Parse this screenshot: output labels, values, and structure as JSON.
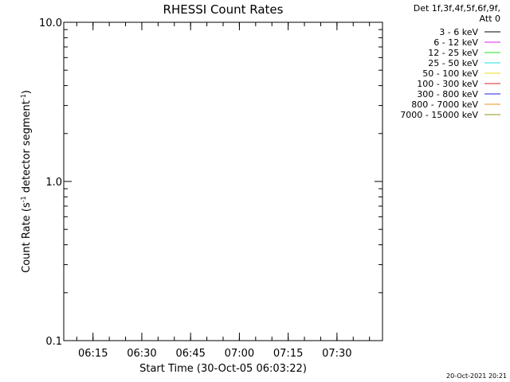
{
  "chart_data": {
    "type": "line",
    "title": "RHESSI Count Rates",
    "xlabel": "Start Time (30-Oct-05 06:03:22)",
    "ylabel_main": "Count Rate (s",
    "ylabel_sup1": "-1",
    "ylabel_mid": " detector segment",
    "ylabel_sup2": "-1",
    "ylabel_end": ")",
    "yscale": "log",
    "ylim": [
      0.1,
      10.0
    ],
    "yticks": [
      {
        "value": 0.1,
        "label": "0.1"
      },
      {
        "value": 1.0,
        "label": "1.0"
      },
      {
        "value": 10.0,
        "label": "10.0"
      }
    ],
    "xlim_minutes": [
      6.0,
      104.0
    ],
    "xticks": [
      {
        "value": 15,
        "label": "06:15"
      },
      {
        "value": 30,
        "label": "06:30"
      },
      {
        "value": 45,
        "label": "06:45"
      },
      {
        "value": 60,
        "label": "07:00"
      },
      {
        "value": 75,
        "label": "07:15"
      },
      {
        "value": 90,
        "label": "07:30"
      }
    ],
    "xminor_step_minutes": 5,
    "legend_header": [
      "Det 1f,3f,4f,5f,6f,9f,",
      "Att 0"
    ],
    "series": [
      {
        "name": "3 - 6 keV",
        "color": "#000000",
        "values": []
      },
      {
        "name": "6 - 12 keV",
        "color": "#e020e0",
        "values": []
      },
      {
        "name": "12 - 25 keV",
        "color": "#20e020",
        "values": []
      },
      {
        "name": "25 - 50 keV",
        "color": "#20e0e0",
        "values": []
      },
      {
        "name": "50 - 100 keV",
        "color": "#e8e020",
        "values": []
      },
      {
        "name": "100 - 300 keV",
        "color": "#e02020",
        "values": []
      },
      {
        "name": "300 - 800 keV",
        "color": "#2020e0",
        "values": []
      },
      {
        "name": "800 - 7000 keV",
        "color": "#f09020",
        "values": []
      },
      {
        "name": "7000 - 15000 keV",
        "color": "#909020",
        "values": []
      }
    ],
    "legend_position": "top-right",
    "timestamp": "20-Oct-2021 20:21"
  }
}
